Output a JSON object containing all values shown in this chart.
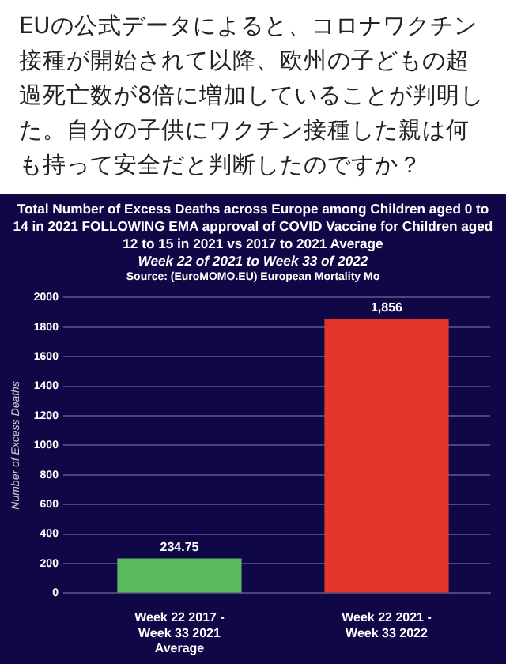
{
  "chart_data": {
    "type": "bar",
    "title": "Total Number of Excess Deaths across Europe among Children aged 0 to 14 in 2021 FOLLOWING EMA approval of COVID Vaccine for Children aged 12 to 15 in 2021 vs 2017 to 2021 Average",
    "subtitle": "Week 22 of 2021 to Week 33 of 2022",
    "annotations": [
      "EUの公式データによると、コロナワクチン接種が開始されて以降、欧州の子どもの超過死亡数が8倍に増加していることが判明した。自分の子供にワクチン接種した親は何も持って安全だと判断したのですか？",
      "Source: (EuroMOMO.EU) European Mortality Mo"
    ],
    "ylabel": "Number of Excess Deaths",
    "categories": [
      "Week 22 2017 - Week 33 2021 Average",
      "Week 22 2021 - Week 33 2022"
    ],
    "values": [
      234.75,
      1856
    ],
    "colors": [
      "#5cb85c",
      "#e3352a"
    ],
    "value_labels": [
      "234.75",
      "1,856"
    ],
    "ylim": [
      0,
      2000
    ],
    "yticks": [
      0,
      200,
      400,
      600,
      800,
      1000,
      1200,
      1400,
      1600,
      1800,
      2000
    ],
    "grid": "y"
  }
}
